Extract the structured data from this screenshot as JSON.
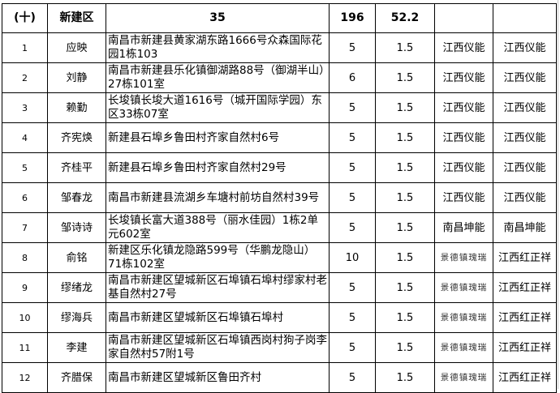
{
  "section": {
    "index": "(十)",
    "district": "新建区",
    "count": "35",
    "total_a": "196",
    "total_b": "52.2"
  },
  "rows": [
    {
      "no": "1",
      "name": "应映",
      "address": "南昌市新建县黄家湖东路1666号众森国际花园1栋103",
      "qty": "5",
      "kw": "1.5",
      "c1": "江西仪能",
      "c2": "江西仪能"
    },
    {
      "no": "2",
      "name": "刘静",
      "address": "南昌市新建县乐化镇御湖路88号（御湖半山）27栋101室",
      "qty": "6",
      "kw": "1.5",
      "c1": "江西仪能",
      "c2": "江西仪能"
    },
    {
      "no": "3",
      "name": "赖勤",
      "address": "长埈镇长埈大道1616号（城开国际学园）东区33栋07室",
      "qty": "5",
      "kw": "1.5",
      "c1": "江西仪能",
      "c2": "江西仪能"
    },
    {
      "no": "4",
      "name": "齐宪焕",
      "address": "新建县石埠乡鲁田村齐家自然村6号",
      "qty": "5",
      "kw": "1.5",
      "c1": "江西仪能",
      "c2": "江西仪能"
    },
    {
      "no": "5",
      "name": "齐桂平",
      "address": "新建县石埠乡鲁田村齐家自然村29号",
      "qty": "5",
      "kw": "1.5",
      "c1": "江西仪能",
      "c2": "江西仪能"
    },
    {
      "no": "6",
      "name": "邹春龙",
      "address": "南昌市新建县流湖乡车塘村前坊自然村39号",
      "qty": "5",
      "kw": "1.5",
      "c1": "江西仪能",
      "c2": "江西仪能"
    },
    {
      "no": "7",
      "name": "邹诗诗",
      "address": "长埈镇长富大道388号（丽水佳园）1栋2单元602室",
      "qty": "5",
      "kw": "1.5",
      "c1": "南昌坤能",
      "c2": "南昌坤能"
    },
    {
      "no": "8",
      "name": "俞铭",
      "address": "新建区乐化镇龙隐路599号（华鹏龙隐山）71栋102室",
      "qty": "10",
      "kw": "1.5",
      "c1": "景德镇瑰瑞",
      "c2": "江西红正祥"
    },
    {
      "no": "9",
      "name": "缪绪龙",
      "address": "南昌市新建区望城新区石埠镇石埠村缪家村老基自然村27号",
      "qty": "5",
      "kw": "1.5",
      "c1": "景德镇瑰瑞",
      "c2": "江西红正祥"
    },
    {
      "no": "10",
      "name": "缪海兵",
      "address": "南昌市新建区望城新区石埠镇石埠村",
      "qty": "5",
      "kw": "1.5",
      "c1": "景德镇瑰瑞",
      "c2": "江西红正祥"
    },
    {
      "no": "11",
      "name": "李建",
      "address": "南昌市新建区望城新区石埠镇西岗村狗子岗李家自然村57附1号",
      "qty": "5",
      "kw": "1.5",
      "c1": "景德镇瑰瑞",
      "c2": "江西红正祥"
    },
    {
      "no": "12",
      "name": "齐腊保",
      "address": "南昌市新建区望城新区鲁田齐村",
      "qty": "5",
      "kw": "1.5",
      "c1": "景德镇瑰瑞",
      "c2": "江西红正祥"
    }
  ]
}
